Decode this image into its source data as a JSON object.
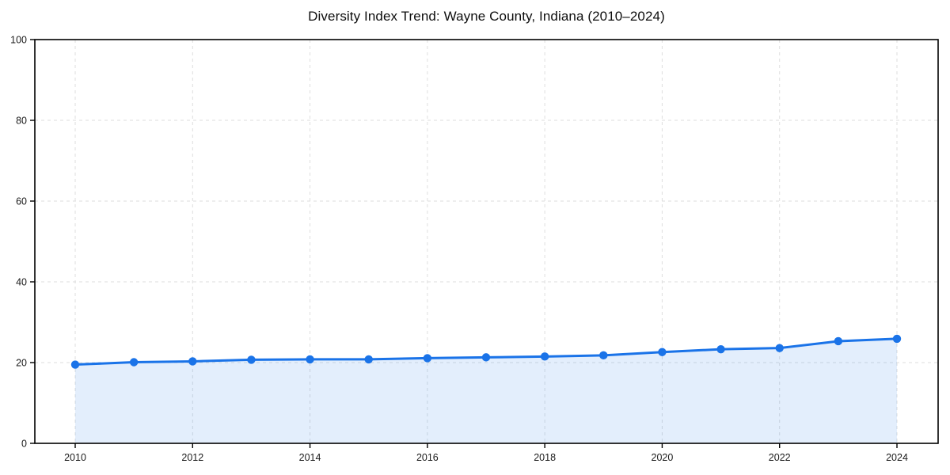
{
  "chart_data": {
    "type": "area",
    "title": "Diversity Index Trend: Wayne County, Indiana (2010–2024)",
    "x": [
      2010,
      2011,
      2012,
      2013,
      2014,
      2015,
      2016,
      2017,
      2018,
      2019,
      2020,
      2021,
      2022,
      2023,
      2024
    ],
    "series": [
      {
        "name": "Diversity Index",
        "values": [
          19.5,
          20.1,
          20.3,
          20.7,
          20.8,
          20.8,
          21.1,
          21.3,
          21.5,
          21.8,
          22.6,
          23.3,
          23.6,
          25.3,
          25.9
        ]
      }
    ],
    "xlabel": "",
    "ylabel": "",
    "ylim": [
      0,
      100
    ],
    "x_ticks": [
      2010,
      2012,
      2014,
      2016,
      2018,
      2020,
      2022,
      2024
    ],
    "y_ticks": [
      0,
      20,
      40,
      60,
      80,
      100
    ],
    "grid": "dashed",
    "legend": "none",
    "line_color": "#1a73e8",
    "fill_opacity": 0.12,
    "marker": "circle",
    "grid_color": "#dedede",
    "axis_color": "#000000",
    "tick_label_color": "#1a1a1a"
  }
}
